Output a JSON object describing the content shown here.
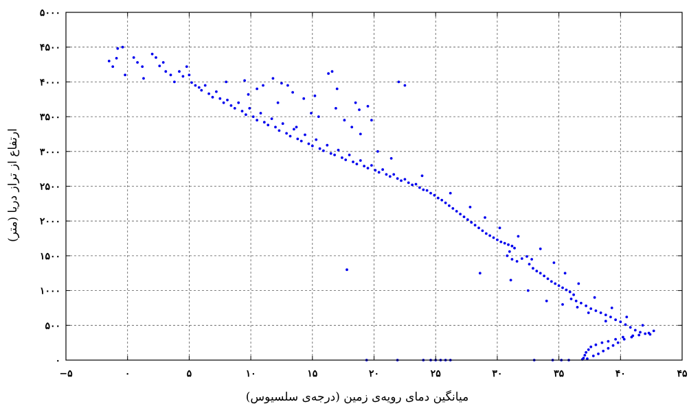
{
  "chart_data": {
    "type": "scatter",
    "xlabel": "میانگین دمای رویه‌ی زمین (درجه‌ی سلسیوس)",
    "ylabel": "ارتفاع از تراز دریا (متر)",
    "xlim": [
      -5,
      45
    ],
    "ylim": [
      0,
      5000
    ],
    "x_ticks": [
      -5,
      0,
      5,
      10,
      15,
      20,
      25,
      30,
      35,
      40,
      45
    ],
    "y_ticks": [
      0,
      500,
      1000,
      1500,
      2000,
      2500,
      3000,
      3500,
      4000,
      4500,
      5000
    ],
    "x_tick_labels": [
      "−۵",
      "۰",
      "۵",
      "۱۰",
      "۱۵",
      "۲۰",
      "۲۵",
      "۳۰",
      "۳۵",
      "۴۰",
      "۴۵"
    ],
    "y_tick_labels": [
      "۰",
      "۵۰۰",
      "۱۰۰۰",
      "۱۵۰۰",
      "۲۰۰۰",
      "۲۵۰۰",
      "۳۰۰۰",
      "۳۵۰۰",
      "۴۰۰۰",
      "۴۵۰۰",
      "۵۰۰۰"
    ],
    "grid": true,
    "marker_color": "#0000ee",
    "series": [
      {
        "points": [
          [
            -1.5,
            4300
          ],
          [
            -0.8,
            4480
          ],
          [
            -0.4,
            4500
          ],
          [
            -0.2,
            4100
          ],
          [
            0.5,
            4350
          ],
          [
            0.8,
            4280
          ],
          [
            1.2,
            4220
          ],
          [
            1.3,
            4050
          ],
          [
            2.0,
            4400
          ],
          [
            2.3,
            4350
          ],
          [
            2.6,
            4230
          ],
          [
            3.1,
            4150
          ],
          [
            3.5,
            4100
          ],
          [
            3.8,
            4000
          ],
          [
            4.2,
            4150
          ],
          [
            4.5,
            4080
          ],
          [
            5.0,
            4100
          ],
          [
            5.2,
            3990
          ],
          [
            5.5,
            3950
          ],
          [
            5.8,
            3920
          ],
          [
            6.0,
            3880
          ],
          [
            6.3,
            3950
          ],
          [
            6.6,
            3830
          ],
          [
            6.9,
            3780
          ],
          [
            7.2,
            3860
          ],
          [
            7.5,
            3760
          ],
          [
            7.8,
            3700
          ],
          [
            8.1,
            3740
          ],
          [
            8.4,
            3660
          ],
          [
            8.7,
            3620
          ],
          [
            9.0,
            3700
          ],
          [
            9.3,
            3580
          ],
          [
            9.6,
            3530
          ],
          [
            9.9,
            3620
          ],
          [
            10.2,
            3500
          ],
          [
            10.5,
            3450
          ],
          [
            10.8,
            3550
          ],
          [
            11.1,
            3420
          ],
          [
            11.4,
            3380
          ],
          [
            11.7,
            3470
          ],
          [
            12.0,
            3350
          ],
          [
            12.3,
            3300
          ],
          [
            12.6,
            3400
          ],
          [
            12.9,
            3260
          ],
          [
            13.2,
            3220
          ],
          [
            13.5,
            3320
          ],
          [
            13.8,
            3180
          ],
          [
            14.1,
            3150
          ],
          [
            14.4,
            3240
          ],
          [
            14.7,
            3110
          ],
          [
            15.0,
            3080
          ],
          [
            15.3,
            3170
          ],
          [
            15.6,
            3040
          ],
          [
            15.9,
            3010
          ],
          [
            16.2,
            3090
          ],
          [
            16.5,
            2970
          ],
          [
            16.8,
            2950
          ],
          [
            17.1,
            3020
          ],
          [
            17.4,
            2910
          ],
          [
            17.7,
            2880
          ],
          [
            18.0,
            2950
          ],
          [
            18.3,
            2850
          ],
          [
            18.6,
            2820
          ],
          [
            18.9,
            2870
          ],
          [
            19.2,
            2790
          ],
          [
            19.5,
            2760
          ],
          [
            19.8,
            2800
          ],
          [
            20.1,
            2730
          ],
          [
            20.4,
            2700
          ],
          [
            20.7,
            2740
          ],
          [
            21.0,
            2670
          ],
          [
            21.3,
            2640
          ],
          [
            21.6,
            2670
          ],
          [
            21.9,
            2610
          ],
          [
            22.2,
            2580
          ],
          [
            22.5,
            2600
          ],
          [
            22.8,
            2550
          ],
          [
            23.1,
            2520
          ],
          [
            23.4,
            2530
          ],
          [
            23.7,
            2480
          ],
          [
            24.0,
            2450
          ],
          [
            24.3,
            2440
          ],
          [
            24.6,
            2400
          ],
          [
            24.9,
            2370
          ],
          [
            25.2,
            2330
          ],
          [
            25.5,
            2300
          ],
          [
            25.8,
            2260
          ],
          [
            26.1,
            2220
          ],
          [
            26.4,
            2180
          ],
          [
            26.7,
            2140
          ],
          [
            27.0,
            2100
          ],
          [
            27.3,
            2060
          ],
          [
            27.6,
            2020
          ],
          [
            27.9,
            1980
          ],
          [
            28.2,
            1940
          ],
          [
            28.5,
            1900
          ],
          [
            28.8,
            1860
          ],
          [
            29.1,
            1820
          ],
          [
            29.4,
            1790
          ],
          [
            29.7,
            1760
          ],
          [
            30.0,
            1730
          ],
          [
            30.3,
            1700
          ],
          [
            30.6,
            1680
          ],
          [
            30.9,
            1660
          ],
          [
            31.2,
            1640
          ],
          [
            31.4,
            1610
          ],
          [
            31.0,
            1560
          ],
          [
            30.8,
            1500
          ],
          [
            31.2,
            1450
          ],
          [
            31.6,
            1420
          ],
          [
            32.0,
            1460
          ],
          [
            32.4,
            1490
          ],
          [
            32.8,
            1450
          ],
          [
            32.6,
            1380
          ],
          [
            32.9,
            1320
          ],
          [
            33.2,
            1280
          ],
          [
            33.5,
            1250
          ],
          [
            33.8,
            1210
          ],
          [
            34.1,
            1170
          ],
          [
            34.4,
            1130
          ],
          [
            34.7,
            1100
          ],
          [
            35.0,
            1070
          ],
          [
            35.3,
            1040
          ],
          [
            35.6,
            1010
          ],
          [
            35.9,
            980
          ],
          [
            36.2,
            940
          ],
          [
            36.0,
            880
          ],
          [
            36.4,
            850
          ],
          [
            36.8,
            820
          ],
          [
            37.2,
            780
          ],
          [
            37.6,
            740
          ],
          [
            38.0,
            710
          ],
          [
            38.4,
            680
          ],
          [
            38.8,
            650
          ],
          [
            39.2,
            620
          ],
          [
            39.6,
            580
          ],
          [
            40.0,
            550
          ],
          [
            40.4,
            510
          ],
          [
            40.8,
            470
          ],
          [
            41.2,
            430
          ],
          [
            41.6,
            400
          ],
          [
            42.0,
            380
          ],
          [
            42.4,
            370
          ],
          [
            41.0,
            350
          ],
          [
            40.2,
            330
          ],
          [
            39.6,
            300
          ],
          [
            39.0,
            270
          ],
          [
            38.5,
            250
          ],
          [
            38.0,
            220
          ],
          [
            37.6,
            190
          ],
          [
            37.4,
            150
          ],
          [
            37.2,
            110
          ],
          [
            37.1,
            70
          ],
          [
            37.0,
            30
          ],
          [
            37.3,
            20
          ],
          [
            36.9,
            10
          ],
          [
            37.8,
            60
          ],
          [
            38.2,
            90
          ],
          [
            38.6,
            130
          ],
          [
            39.0,
            170
          ],
          [
            39.4,
            210
          ],
          [
            39.8,
            250
          ],
          [
            40.3,
            300
          ],
          [
            40.9,
            330
          ],
          [
            41.5,
            360
          ],
          [
            42.3,
            390
          ],
          [
            11.8,
            4050
          ],
          [
            12.5,
            3980
          ],
          [
            13.4,
            3850
          ],
          [
            14.3,
            3760
          ],
          [
            13.0,
            3950
          ],
          [
            10.5,
            3900
          ],
          [
            9.8,
            3820
          ],
          [
            16.6,
            4150
          ],
          [
            16.3,
            4120
          ],
          [
            17.0,
            3900
          ],
          [
            18.5,
            3700
          ],
          [
            18.8,
            3600
          ],
          [
            19.5,
            3650
          ],
          [
            19.8,
            3450
          ],
          [
            15.5,
            3500
          ],
          [
            14.9,
            3550
          ],
          [
            13.7,
            3350
          ],
          [
            22.0,
            4000
          ],
          [
            22.5,
            3950
          ],
          [
            17.8,
            1300
          ],
          [
            19.4,
            0
          ],
          [
            21.9,
            0
          ],
          [
            24.0,
            0
          ],
          [
            24.6,
            0
          ],
          [
            25.0,
            0
          ],
          [
            25.4,
            0
          ],
          [
            25.8,
            0
          ],
          [
            26.2,
            0
          ],
          [
            34.5,
            0
          ],
          [
            35.2,
            0
          ],
          [
            35.8,
            0
          ],
          [
            33.0,
            0
          ],
          [
            -1.2,
            4220
          ],
          [
            -0.9,
            4340
          ],
          [
            2.9,
            4280
          ],
          [
            4.8,
            4220
          ],
          [
            8.0,
            4000
          ],
          [
            9.5,
            4020
          ],
          [
            11.0,
            3950
          ],
          [
            12.2,
            3700
          ],
          [
            15.2,
            3800
          ],
          [
            16.9,
            3620
          ],
          [
            17.6,
            3450
          ],
          [
            18.2,
            3350
          ],
          [
            18.9,
            3250
          ],
          [
            20.3,
            3000
          ],
          [
            21.4,
            2900
          ],
          [
            23.9,
            2650
          ],
          [
            26.2,
            2400
          ],
          [
            27.8,
            2200
          ],
          [
            29.0,
            2050
          ],
          [
            30.2,
            1900
          ],
          [
            31.7,
            1780
          ],
          [
            33.5,
            1600
          ],
          [
            34.6,
            1400
          ],
          [
            35.5,
            1250
          ],
          [
            36.6,
            1100
          ],
          [
            37.9,
            900
          ],
          [
            39.3,
            750
          ],
          [
            40.5,
            620
          ],
          [
            41.8,
            500
          ],
          [
            42.7,
            420
          ],
          [
            38.8,
            560
          ],
          [
            37.4,
            680
          ],
          [
            36.5,
            760
          ],
          [
            35.3,
            800
          ],
          [
            34.0,
            850
          ],
          [
            32.5,
            1000
          ],
          [
            31.1,
            1150
          ],
          [
            28.6,
            1250
          ]
        ]
      }
    ]
  }
}
